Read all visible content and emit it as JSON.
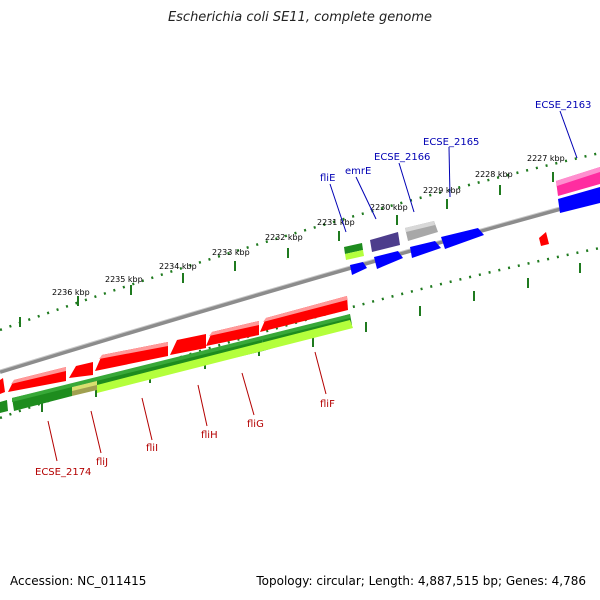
{
  "title": "Escherichia coli SE11, complete genome",
  "accession_text": "Accession: NC_011415",
  "summary_text": "Topology: circular; Length: 4,887,515 bp; Genes: 4,786",
  "colors": {
    "backbone": "#8c8c8c",
    "tick": "#1f7a1f",
    "label_blue": "#0000b4",
    "label_red": "#b40000",
    "cds_forward": "#0000ff",
    "cds_reverse": "#ff0000",
    "rna": "#999999",
    "dark_blue": "#4d3d8c",
    "magenta": "#ff2da0",
    "green_dark": "#1e8c1e",
    "green_light": "#b4ff3c",
    "olive": "#a0a050"
  },
  "ticks": [
    {
      "label": "2227 kbp"
    },
    {
      "label": "2228 kbp"
    },
    {
      "label": "2229 kbp"
    },
    {
      "label": "2230 kbp"
    },
    {
      "label": "2231 kbp"
    },
    {
      "label": "2232 kbp"
    },
    {
      "label": "2233 kbp"
    },
    {
      "label": "2234 kbp"
    },
    {
      "label": "2235 kbp"
    },
    {
      "label": "2236 kbp"
    }
  ],
  "gene_labels_top": [
    {
      "text": "ECSE_2163"
    },
    {
      "text": "ECSE_2165"
    },
    {
      "text": "ECSE_2166"
    },
    {
      "text": "emrE"
    },
    {
      "text": "fliE"
    }
  ],
  "gene_labels_bottom": [
    {
      "text": "fliF"
    },
    {
      "text": "fliG"
    },
    {
      "text": "fliH"
    },
    {
      "text": "fliI"
    },
    {
      "text": "fliJ"
    },
    {
      "text": "ECSE_2174"
    }
  ]
}
